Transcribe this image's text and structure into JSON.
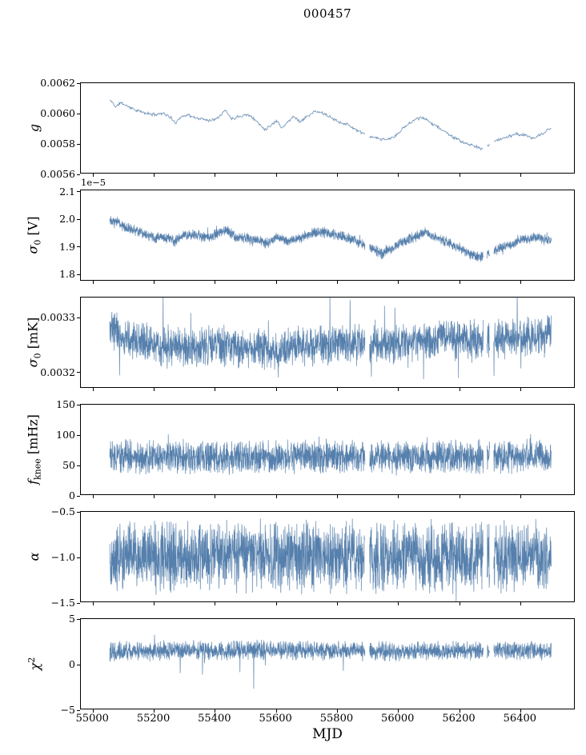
{
  "title": "000457",
  "xlabel": "MJD",
  "colors": {
    "line": "#4c78a8",
    "axis": "#000000",
    "background": "#ffffff"
  },
  "chart_data": {
    "type": "line",
    "title": "000457",
    "xlabel": "MJD",
    "legend": "none",
    "grid": false,
    "xlim": [
      54960,
      56580
    ],
    "xticks": [
      55000,
      55200,
      55400,
      55600,
      55800,
      56000,
      56200,
      56400
    ],
    "xtick_labels": [
      "55000",
      "55200",
      "55400",
      "55600",
      "55800",
      "56000",
      "56200",
      "56400"
    ],
    "x_start": 55055,
    "x_end": 56505,
    "gaps": [
      [
        55893,
        55908
      ],
      [
        56282,
        56294
      ],
      [
        56303,
        56316
      ]
    ],
    "panels": [
      {
        "name": "g",
        "label_parts": [
          {
            "t": "g",
            "s": "i"
          }
        ],
        "ylim": [
          0.0056,
          0.0062
        ],
        "yticks": [
          0.0056,
          0.0058,
          0.006,
          0.0062
        ],
        "ytick_labels": [
          "0.0056",
          "0.0058",
          "0.0060",
          "0.0062"
        ],
        "noise": 1.2e-05,
        "samples": 750,
        "seed": 11,
        "trend": [
          [
            55060,
            0.00608
          ],
          [
            55075,
            0.00604
          ],
          [
            55090,
            0.00607
          ],
          [
            55110,
            0.00605
          ],
          [
            55140,
            0.00602
          ],
          [
            55170,
            0.006
          ],
          [
            55200,
            0.00599
          ],
          [
            55230,
            0.006
          ],
          [
            55255,
            0.00597
          ],
          [
            55270,
            0.00593
          ],
          [
            55285,
            0.00597
          ],
          [
            55310,
            0.00599
          ],
          [
            55330,
            0.00597
          ],
          [
            55360,
            0.00596
          ],
          [
            55390,
            0.00595
          ],
          [
            55415,
            0.00598
          ],
          [
            55435,
            0.00602
          ],
          [
            55455,
            0.00596
          ],
          [
            55480,
            0.00598
          ],
          [
            55510,
            0.00599
          ],
          [
            55540,
            0.00594
          ],
          [
            55565,
            0.00589
          ],
          [
            55585,
            0.00592
          ],
          [
            55605,
            0.00595
          ],
          [
            55620,
            0.0059
          ],
          [
            55640,
            0.00594
          ],
          [
            55660,
            0.00598
          ],
          [
            55680,
            0.00594
          ],
          [
            55705,
            0.00598
          ],
          [
            55730,
            0.00601
          ],
          [
            55755,
            0.006
          ],
          [
            55780,
            0.00597
          ],
          [
            55810,
            0.00594
          ],
          [
            55840,
            0.00592
          ],
          [
            55870,
            0.00588
          ],
          [
            55900,
            0.00585
          ],
          [
            55930,
            0.00583
          ],
          [
            55960,
            0.00582
          ],
          [
            55990,
            0.00584
          ],
          [
            56020,
            0.0059
          ],
          [
            56050,
            0.00595
          ],
          [
            56075,
            0.00597
          ],
          [
            56100,
            0.00595
          ],
          [
            56130,
            0.00591
          ],
          [
            56160,
            0.00587
          ],
          [
            56190,
            0.00583
          ],
          [
            56220,
            0.0058
          ],
          [
            56250,
            0.00578
          ],
          [
            56275,
            0.00576
          ],
          [
            56300,
            0.00579
          ],
          [
            56330,
            0.00582
          ],
          [
            56360,
            0.00584
          ],
          [
            56390,
            0.00586
          ],
          [
            56420,
            0.00585
          ],
          [
            56450,
            0.00583
          ],
          [
            56475,
            0.00586
          ],
          [
            56505,
            0.0059
          ]
        ]
      },
      {
        "name": "sigma0-V",
        "label_parts": [
          {
            "t": "σ",
            "s": "i"
          },
          {
            "t": "0",
            "s": "sub"
          },
          {
            "t": " [V]",
            "s": "n"
          }
        ],
        "offset_text": "1e−5",
        "ylim": [
          1.775,
          2.105
        ],
        "yticks": [
          1.8,
          1.9,
          2.0,
          2.1
        ],
        "ytick_labels": [
          "1.8",
          "1.9",
          "2.0",
          "2.1"
        ],
        "noise": 0.021,
        "samples": 2300,
        "seed": 22,
        "spikes": {
          "p": 0.012,
          "up": 0.02,
          "down": 0.02
        },
        "trend": [
          [
            55060,
            2.0
          ],
          [
            55080,
            1.99
          ],
          [
            55100,
            1.97
          ],
          [
            55130,
            1.96
          ],
          [
            55160,
            1.95
          ],
          [
            55200,
            1.93
          ],
          [
            55240,
            1.93
          ],
          [
            55270,
            1.92
          ],
          [
            55300,
            1.94
          ],
          [
            55340,
            1.94
          ],
          [
            55380,
            1.93
          ],
          [
            55420,
            1.95
          ],
          [
            55440,
            1.96
          ],
          [
            55470,
            1.93
          ],
          [
            55500,
            1.93
          ],
          [
            55540,
            1.92
          ],
          [
            55570,
            1.91
          ],
          [
            55600,
            1.93
          ],
          [
            55640,
            1.92
          ],
          [
            55680,
            1.93
          ],
          [
            55720,
            1.95
          ],
          [
            55760,
            1.95
          ],
          [
            55800,
            1.94
          ],
          [
            55840,
            1.93
          ],
          [
            55880,
            1.91
          ],
          [
            55920,
            1.89
          ],
          [
            55950,
            1.87
          ],
          [
            55980,
            1.89
          ],
          [
            56010,
            1.91
          ],
          [
            56050,
            1.93
          ],
          [
            56090,
            1.95
          ],
          [
            56130,
            1.93
          ],
          [
            56170,
            1.91
          ],
          [
            56210,
            1.89
          ],
          [
            56240,
            1.87
          ],
          [
            56270,
            1.86
          ],
          [
            56300,
            1.87
          ],
          [
            56330,
            1.89
          ],
          [
            56360,
            1.9
          ],
          [
            56400,
            1.92
          ],
          [
            56440,
            1.93
          ],
          [
            56470,
            1.93
          ],
          [
            56505,
            1.92
          ]
        ]
      },
      {
        "name": "sigma0-mK",
        "label_parts": [
          {
            "t": "σ",
            "s": "i"
          },
          {
            "t": "0",
            "s": "sub"
          },
          {
            "t": " [mK]",
            "s": "n"
          }
        ],
        "ylim": [
          0.00317,
          0.003337
        ],
        "yticks": [
          0.0032,
          0.0033
        ],
        "ytick_labels": [
          "0.0032",
          "0.0033"
        ],
        "noise": 4e-05,
        "samples": 2300,
        "seed": 33,
        "spikes": {
          "p": 0.008,
          "up": 8e-05,
          "down": 6e-05
        },
        "trend": [
          [
            55060,
            0.00328
          ],
          [
            55090,
            0.003262
          ],
          [
            55130,
            0.003255
          ],
          [
            55180,
            0.00325
          ],
          [
            55250,
            0.003245
          ],
          [
            55320,
            0.003242
          ],
          [
            55400,
            0.003248
          ],
          [
            55480,
            0.003242
          ],
          [
            55560,
            0.00324
          ],
          [
            55620,
            0.003238
          ],
          [
            55700,
            0.003248
          ],
          [
            55780,
            0.00325
          ],
          [
            55860,
            0.00325
          ],
          [
            55940,
            0.003248
          ],
          [
            56020,
            0.00325
          ],
          [
            56100,
            0.003258
          ],
          [
            56180,
            0.003262
          ],
          [
            56260,
            0.003255
          ],
          [
            56340,
            0.00326
          ],
          [
            56420,
            0.003262
          ],
          [
            56505,
            0.003268
          ]
        ]
      },
      {
        "name": "f-knee",
        "label_parts": [
          {
            "t": "f",
            "s": "i"
          },
          {
            "t": "knee",
            "s": "sub"
          },
          {
            "t": " [mHz]",
            "s": "n"
          }
        ],
        "ylim": [
          0,
          150
        ],
        "yticks": [
          0,
          50,
          100,
          150
        ],
        "ytick_labels": [
          "0",
          "50",
          "100",
          "150"
        ],
        "noise": 30,
        "samples": 2300,
        "seed": 44,
        "spikes": {
          "p": 0.01,
          "up": 28,
          "down": 12
        },
        "trend": [
          [
            55060,
            63
          ],
          [
            55300,
            62
          ],
          [
            55600,
            63
          ],
          [
            55900,
            62
          ],
          [
            56200,
            63
          ],
          [
            56505,
            63
          ]
        ]
      },
      {
        "name": "alpha",
        "label_parts": [
          {
            "t": "α",
            "s": "i"
          }
        ],
        "ylim": [
          -1.5,
          -0.5
        ],
        "yticks": [
          -1.5,
          -1.0,
          -0.5
        ],
        "ytick_labels": [
          "−1.5",
          "−1.0",
          "−0.5"
        ],
        "noise": 0.42,
        "samples": 2300,
        "seed": 55,
        "spikes": {
          "p": 0.012,
          "up": 0.12,
          "down": 0.12
        },
        "trend": [
          [
            55060,
            -1.0
          ],
          [
            55600,
            -0.99
          ],
          [
            56000,
            -1.0
          ],
          [
            56505,
            -1.0
          ]
        ]
      },
      {
        "name": "chi2",
        "label_parts": [
          {
            "t": "χ",
            "s": "i"
          },
          {
            "t": "2",
            "s": "sup"
          }
        ],
        "ylim": [
          -5,
          5
        ],
        "yticks": [
          -5,
          0,
          5
        ],
        "ytick_labels": [
          "−5",
          "0",
          "5"
        ],
        "noise": 1.15,
        "samples": 2300,
        "seed": 66,
        "spikes": {
          "p": 0.01,
          "up": 0.8,
          "down": 2.8
        },
        "trend": [
          [
            55060,
            1.4
          ],
          [
            55500,
            1.55
          ],
          [
            56000,
            1.4
          ],
          [
            56505,
            1.5
          ]
        ]
      }
    ]
  }
}
